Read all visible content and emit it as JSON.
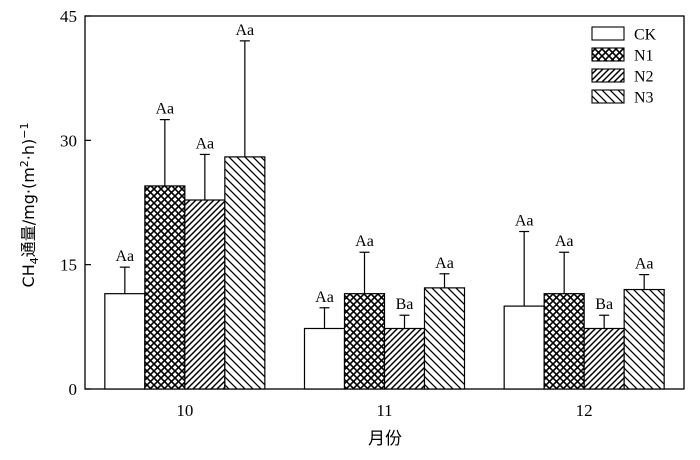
{
  "chart_data": {
    "type": "bar",
    "categories": [
      "10",
      "11",
      "12"
    ],
    "xlabel": "月份",
    "ylabel": {
      "prefix": "CH",
      "sub4": "4",
      "text1": "通量/mg·(m",
      "sup2": "2",
      "text2": "·h)",
      "supneg1": "−1"
    },
    "ylim": [
      0,
      45
    ],
    "yticks": [
      0,
      15,
      30,
      45
    ],
    "legend_position": "top-right",
    "series": [
      {
        "name": "CK",
        "pattern": "none",
        "values": [
          11.5,
          7.3,
          10.0
        ],
        "errors": [
          3.2,
          2.5,
          9.0
        ],
        "labels": [
          "Aa",
          "Aa",
          "Aa"
        ]
      },
      {
        "name": "N1",
        "pattern": "cross",
        "values": [
          24.5,
          11.5,
          11.5
        ],
        "errors": [
          8.0,
          5.0,
          5.0
        ],
        "labels": [
          "Aa",
          "Aa",
          "Aa"
        ]
      },
      {
        "name": "N2",
        "pattern": "diag-up",
        "values": [
          22.8,
          7.3,
          7.3
        ],
        "errors": [
          5.5,
          1.6,
          1.6
        ],
        "labels": [
          "Aa",
          "Ba",
          "Ba"
        ]
      },
      {
        "name": "N3",
        "pattern": "diag-down",
        "values": [
          28.0,
          12.2,
          12.0
        ],
        "errors": [
          14.0,
          1.7,
          1.8
        ],
        "labels": [
          "Aa",
          "Aa",
          "Aa"
        ]
      }
    ]
  }
}
